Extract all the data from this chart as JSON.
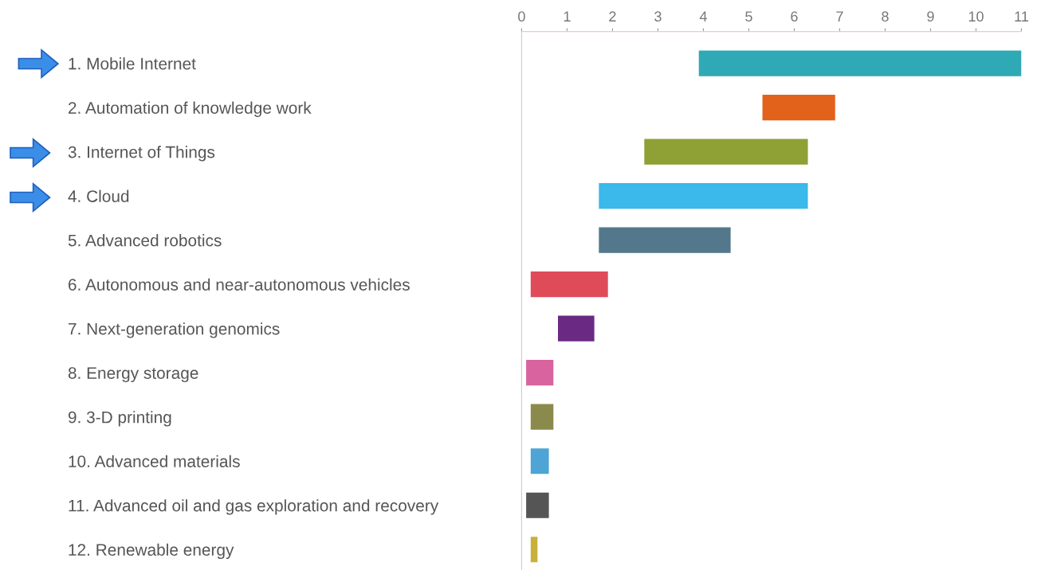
{
  "chart_data": {
    "type": "bar",
    "orientation": "horizontal",
    "categories": [
      "1. Mobile Internet",
      "2. Automation of knowledge work",
      "3. Internet of Things",
      "4. Cloud",
      "5. Advanced robotics",
      "6. Autonomous and near-autonomous vehicles",
      "7. Next-generation genomics",
      "8. Energy storage",
      "9. 3-D printing",
      "10. Advanced materials",
      "11. Advanced oil and gas exploration and recovery",
      "12. Renewable energy"
    ],
    "base": [
      3.9,
      5.3,
      2.7,
      1.7,
      1.7,
      0.2,
      0.8,
      0.1,
      0.2,
      0.2,
      0.1,
      0.2
    ],
    "values": [
      7.1,
      1.6,
      3.6,
      4.6,
      2.9,
      1.7,
      0.8,
      0.6,
      0.5,
      0.4,
      0.5,
      0.15
    ],
    "colors": [
      "#2fa9b5",
      "#e2621b",
      "#8fa034",
      "#3bb9ea",
      "#53788c",
      "#e04b5a",
      "#6a2a84",
      "#d9639f",
      "#8a8a4c",
      "#4ea4d4",
      "#555555",
      "#c8b13a"
    ],
    "xlim": [
      0,
      11
    ],
    "xticks": [
      0,
      1,
      2,
      3,
      4,
      5,
      6,
      7,
      8,
      9,
      10,
      11
    ],
    "grid": false
  }
}
